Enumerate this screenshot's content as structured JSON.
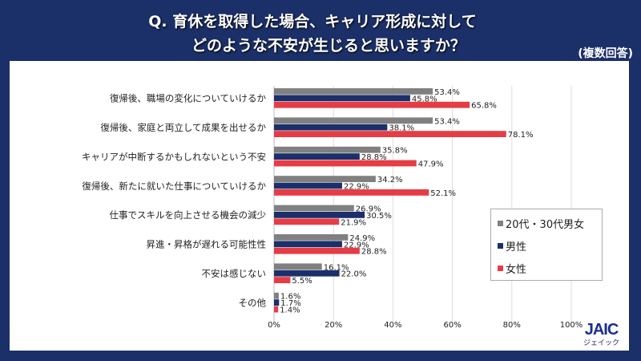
{
  "header": {
    "title_line1": "Q. 育休を取得した場合、キャリア形成に対して",
    "title_line2": "どのような不安が生じると思いますか？",
    "note": "(複数回答)"
  },
  "logo": {
    "text": "JAIC",
    "subtext": "ジェイック"
  },
  "chart_data": {
    "type": "bar",
    "orientation": "horizontal",
    "categories": [
      "復帰後、職場の変化についていけるか",
      "復帰後、家庭と両立して成果を出せるか",
      "キャリアが中断するかもしれないという不安",
      "復帰後、新たに就いた仕事についていけるか",
      "仕事でスキルを向上させる機会の減少",
      "昇進・昇格が遅れる可能性性",
      "不安は感じない",
      "その他"
    ],
    "series": [
      {
        "name": "20代・30代男女",
        "color": "#808080",
        "values": [
          53.4,
          53.4,
          35.8,
          34.2,
          26.9,
          24.9,
          16.1,
          1.6
        ]
      },
      {
        "name": "男性",
        "color": "#1b2f6b",
        "values": [
          45.8,
          38.1,
          28.8,
          22.9,
          30.5,
          22.9,
          22.0,
          1.7
        ]
      },
      {
        "name": "女性",
        "color": "#e63c46",
        "values": [
          65.8,
          78.1,
          47.9,
          52.1,
          21.9,
          28.8,
          5.5,
          1.4
        ]
      }
    ],
    "xlim": [
      0,
      100
    ],
    "xticks": [
      "0%",
      "20%",
      "40%",
      "60%",
      "80%",
      "100%"
    ],
    "grid": true,
    "legend": "right"
  }
}
